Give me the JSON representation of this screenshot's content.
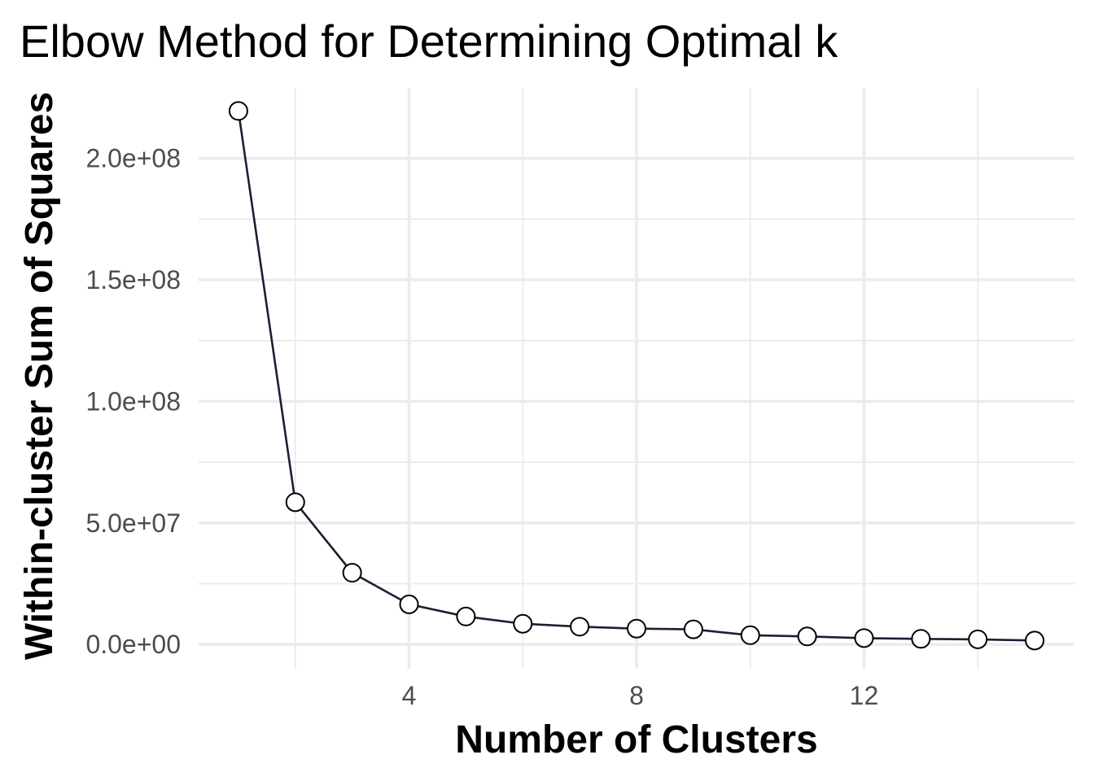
{
  "chart_data": {
    "type": "line",
    "title": "Elbow Method for Determining Optimal k",
    "xlabel": "Number of Clusters",
    "ylabel": "Within-cluster Sum of Squares",
    "x": [
      1,
      2,
      3,
      4,
      5,
      6,
      7,
      8,
      9,
      10,
      11,
      12,
      13,
      14,
      15
    ],
    "series": [
      {
        "values": [
          219500000,
          58500000,
          29500000,
          16500000,
          11500000,
          8500000,
          7300000,
          6500000,
          6200000,
          3800000,
          3300000,
          2600000,
          2300000,
          2100000,
          1600000
        ]
      }
    ],
    "xlim": [
      0.3,
      15.7
    ],
    "ylim": [
      -10000000,
      229000000
    ],
    "x_ticks": [
      4,
      8,
      12
    ],
    "x_tick_labels": [
      "4",
      "8",
      "12"
    ],
    "x_minor_ticks": [
      2,
      6,
      10,
      14
    ],
    "y_ticks": [
      0,
      50000000,
      100000000,
      150000000,
      200000000
    ],
    "y_tick_labels": [
      "0.0e+00",
      "5.0e+07",
      "1.0e+08",
      "1.5e+08",
      "2.0e+08"
    ],
    "y_minor_ticks": [
      25000000,
      75000000,
      125000000,
      175000000
    ],
    "grid": true,
    "legend": "none",
    "colors": {
      "line": "#1a1f33",
      "marker_stroke": "#000000",
      "marker_fill": "#ffffff",
      "grid": "#ebebeb",
      "tick_label": "#4d4d4d"
    }
  }
}
